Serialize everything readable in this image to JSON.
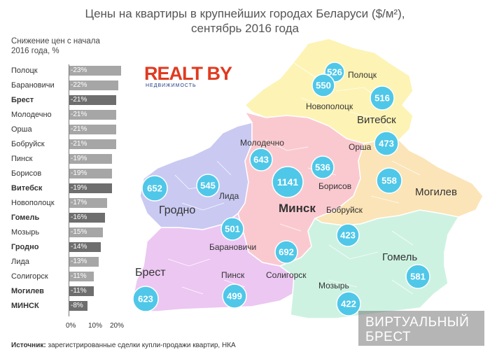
{
  "title_line1": "Цены на квартиры в крупнейших городах Беларуси ($/м²),",
  "title_line2": "сентябрь 2016 года",
  "chart_subtitle": "Снижение цен с начала 2016 года, %",
  "logo": {
    "main": "REALT BY",
    "sub": "НЕДВИЖИМОСТЬ"
  },
  "source_label": "Источник:",
  "source_text": " зарегистрированные сделки купли-продажи квартир, НКА",
  "watermark": {
    "line1": "ВИРТУАЛЬНЫЙ",
    "line2": "БРЕСТ"
  },
  "chart_data": {
    "type": "bar",
    "orientation": "horizontal",
    "title": "Снижение цен с начала 2016 года, %",
    "categories": [
      "Полоцк",
      "Барановичи",
      "Брест",
      "Молодечно",
      "Орша",
      "Бобруйск",
      "Пинск",
      "Борисов",
      "Витебск",
      "Новополоцк",
      "Гомель",
      "Мозырь",
      "Гродно",
      "Лида",
      "Солигорск",
      "Могилев",
      "МИНСК"
    ],
    "values": [
      -23,
      -22,
      -21,
      -21,
      -21,
      -21,
      -19,
      -19,
      -19,
      -17,
      -16,
      -15,
      -14,
      -13,
      -11,
      -11,
      -8
    ],
    "value_labels": [
      "-23%",
      "-22%",
      "-21%",
      "-21%",
      "-21%",
      "-21%",
      "-19%",
      "-19%",
      "-19%",
      "-17%",
      "-16%",
      "-15%",
      "-14%",
      "-13%",
      "-11%",
      "-11%",
      "-8%"
    ],
    "bold": [
      false,
      false,
      true,
      false,
      false,
      false,
      false,
      false,
      true,
      false,
      true,
      false,
      true,
      false,
      false,
      true,
      true
    ],
    "x_ticks": [
      "0%",
      "10%",
      "20%"
    ],
    "xlim": [
      0,
      25
    ],
    "colors": {
      "bar": "#a6a6a6",
      "bar_highlight": "#6e6e6e"
    }
  },
  "map": {
    "regions": [
      {
        "name": "Витебск",
        "color": "#fdf3b4"
      },
      {
        "name": "Минск",
        "color": "#fac9cf"
      },
      {
        "name": "Гродно",
        "color": "#c9c9f2"
      },
      {
        "name": "Брест",
        "color": "#ecc7f2"
      },
      {
        "name": "Гомель",
        "color": "#cdf2e2"
      },
      {
        "name": "Могилев",
        "color": "#fbe4b7"
      }
    ],
    "cities": [
      {
        "name": "Полоцк",
        "price": "526"
      },
      {
        "name": "Новополоцк",
        "price": "550"
      },
      {
        "name": "Витебск",
        "price": "516"
      },
      {
        "name": "Орша",
        "price": "473"
      },
      {
        "name": "Молодечно",
        "price": "643"
      },
      {
        "name": "Минск",
        "price": "1141"
      },
      {
        "name": "Борисов",
        "price": "536"
      },
      {
        "name": "Могилев",
        "price": "558"
      },
      {
        "name": "Гродно",
        "price": "652"
      },
      {
        "name": "Лида",
        "price": "545"
      },
      {
        "name": "Бобруйск",
        "price": "423"
      },
      {
        "name": "Барановичи",
        "price": "501"
      },
      {
        "name": "Солигорск",
        "price": "692"
      },
      {
        "name": "Брест",
        "price": "623"
      },
      {
        "name": "Пинск",
        "price": "499"
      },
      {
        "name": "Мозырь",
        "price": "422"
      },
      {
        "name": "Гомель",
        "price": "581"
      }
    ],
    "circle_color": "#4fc7e8"
  }
}
